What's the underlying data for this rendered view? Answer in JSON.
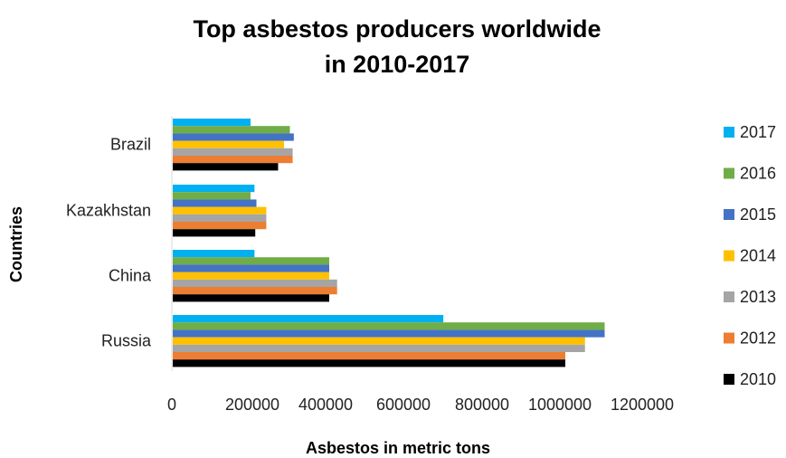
{
  "chart_data": {
    "type": "bar",
    "orientation": "horizontal",
    "title_lines": [
      "Top asbestos producers worldwide",
      "in 2010-2017"
    ],
    "xlabel": "Asbestos in metric tons",
    "ylabel": "Countries",
    "categories": [
      "Russia",
      "China",
      "Kazakhstan",
      "Brazil"
    ],
    "xlim": [
      0,
      1200000
    ],
    "xticks": [
      "0",
      "200000",
      "400000",
      "600000",
      "800000",
      "1000000",
      "1200000"
    ],
    "grid": false,
    "legend_position": "right",
    "series": [
      {
        "name": "2010",
        "color": "#000000",
        "values": [
          1000000,
          400000,
          212000,
          270000
        ]
      },
      {
        "name": "2012",
        "color": "#ED7D31",
        "values": [
          1000000,
          420000,
          240000,
          307000
        ]
      },
      {
        "name": "2013",
        "color": "#A5A5A5",
        "values": [
          1050000,
          420000,
          240000,
          307000
        ]
      },
      {
        "name": "2014",
        "color": "#FFC000",
        "values": [
          1050000,
          400000,
          240000,
          285000
        ]
      },
      {
        "name": "2015",
        "color": "#4472C4",
        "values": [
          1100000,
          400000,
          215000,
          310000
        ]
      },
      {
        "name": "2016",
        "color": "#70AD47",
        "values": [
          1100000,
          400000,
          200000,
          300000
        ]
      },
      {
        "name": "2017",
        "color": "#00B0F0",
        "values": [
          690000,
          210000,
          210000,
          200000
        ]
      }
    ]
  }
}
